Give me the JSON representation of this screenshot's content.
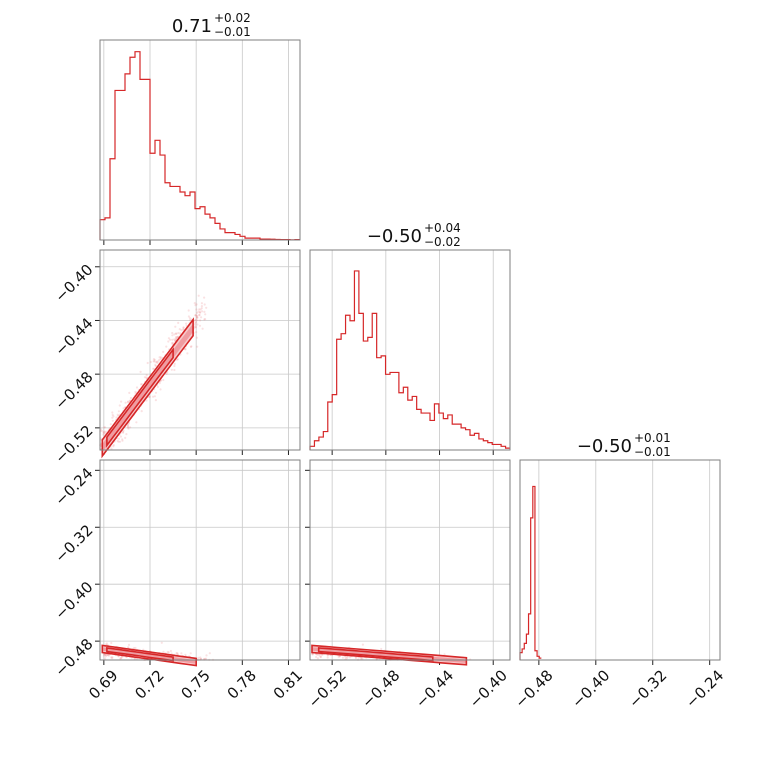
{
  "colors": {
    "series": "#d62728",
    "frame": "#7f7f7f",
    "grid": "#c8c8c8"
  },
  "chart_data": [
    {
      "type": "corner",
      "parameters": [
        {
          "range": [
            0.6875,
            0.8175
          ],
          "ticks": [
            "0.69",
            "0.72",
            "0.75",
            "0.78",
            "0.81"
          ],
          "tick_values": [
            0.69,
            0.72,
            0.75,
            0.78,
            0.81
          ]
        },
        {
          "range": [
            -0.5365,
            -0.3875
          ],
          "ticks": [
            "−0.52",
            "−0.48",
            "−0.44",
            "−0.40"
          ],
          "tick_values": [
            -0.52,
            -0.48,
            -0.44,
            -0.4
          ]
        },
        {
          "range": [
            -0.5065,
            -0.2255
          ],
          "ticks": [
            "−0.48",
            "−0.40",
            "−0.32",
            "−0.24"
          ],
          "tick_values": [
            -0.48,
            -0.4,
            -0.32,
            -0.24
          ]
        }
      ],
      "titles": [
        {
          "main": "0.71",
          "plus": "+0.02",
          "minus": "−0.01"
        },
        {
          "main": "−0.50",
          "plus": "+0.04",
          "minus": "−0.02"
        },
        {
          "main": "−0.50",
          "plus": "+0.01",
          "minus": "−0.01"
        }
      ],
      "hist_p0": [
        0.11,
        0.12,
        0.44,
        0.81,
        0.81,
        0.9,
        0.99,
        1.02,
        0.87,
        0.87,
        0.47,
        0.54,
        0.46,
        0.31,
        0.29,
        0.29,
        0.26,
        0.24,
        0.26,
        0.17,
        0.18,
        0.14,
        0.12,
        0.09,
        0.06,
        0.04,
        0.04,
        0.03,
        0.02,
        0.01,
        0.01,
        0.01,
        0.005,
        0.005,
        0.004,
        0.003,
        0.002,
        0.002,
        0.001,
        0.002
      ],
      "hist_p1": [
        0.02,
        0.05,
        0.07,
        0.1,
        0.26,
        0.3,
        0.6,
        0.63,
        0.73,
        0.7,
        0.97,
        0.74,
        0.59,
        0.61,
        0.74,
        0.5,
        0.51,
        0.41,
        0.42,
        0.42,
        0.31,
        0.34,
        0.27,
        0.29,
        0.22,
        0.2,
        0.2,
        0.16,
        0.25,
        0.2,
        0.17,
        0.19,
        0.14,
        0.14,
        0.12,
        0.11,
        0.08,
        0.09,
        0.06,
        0.05,
        0.04,
        0.03,
        0.03,
        0.02,
        0.01
      ],
      "hist_p2": [
        0.04,
        0.06,
        0.09,
        0.14,
        0.25,
        0.77,
        0.94,
        0.05,
        0.02,
        0.01
      ],
      "hist_p2_range": [
        -0.5065,
        -0.4765
      ]
    }
  ]
}
